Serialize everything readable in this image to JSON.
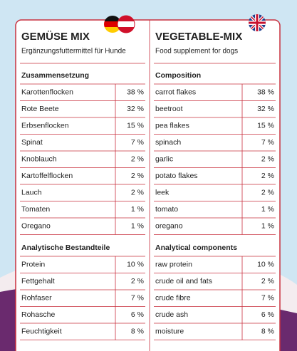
{
  "left": {
    "title": "GEMÜSE MIX",
    "subtitle": "Ergänzungsfuttermittel für Hunde",
    "composition_heading": "Zusammensetzung",
    "composition": [
      [
        "Karottenflocken",
        "38 %"
      ],
      [
        "Rote Beete",
        "32 %"
      ],
      [
        "Erbsenflocken",
        "15 %"
      ],
      [
        "Spinat",
        "7 %"
      ],
      [
        "Knoblauch",
        "2 %"
      ],
      [
        "Kartoffelflocken",
        "2 %"
      ],
      [
        "Lauch",
        "2 %"
      ],
      [
        "Tomaten",
        "1 %"
      ],
      [
        "Oregano",
        "1 %"
      ]
    ],
    "analysis_heading": "Analytische Bestandteile",
    "analysis": [
      [
        "Protein",
        "10 %"
      ],
      [
        "Fettgehalt",
        "2 %"
      ],
      [
        "Rohfaser",
        "7 %"
      ],
      [
        "Rohasche",
        "6 %"
      ],
      [
        "Feuchtigkeit",
        "8 %"
      ]
    ]
  },
  "right": {
    "title": "VEGETABLE-MIX",
    "subtitle": "Food supplement for dogs",
    "composition_heading": "Composition",
    "composition": [
      [
        "carrot flakes",
        "38 %"
      ],
      [
        "beetroot",
        "32 %"
      ],
      [
        "pea flakes",
        "15 %"
      ],
      [
        "spinach",
        "7 %"
      ],
      [
        "garlic",
        "2 %"
      ],
      [
        "potato flakes",
        "2 %"
      ],
      [
        "leek",
        "2 %"
      ],
      [
        "tomato",
        "1 %"
      ],
      [
        "oregano",
        "1 %"
      ]
    ],
    "analysis_heading": "Analytical components",
    "analysis": [
      [
        "raw protein",
        "10 %"
      ],
      [
        "crude oil and fats",
        "2 %"
      ],
      [
        "crude fibre",
        "7 %"
      ],
      [
        "crude ash",
        "6 %"
      ],
      [
        "moisture",
        "8 %"
      ]
    ]
  }
}
